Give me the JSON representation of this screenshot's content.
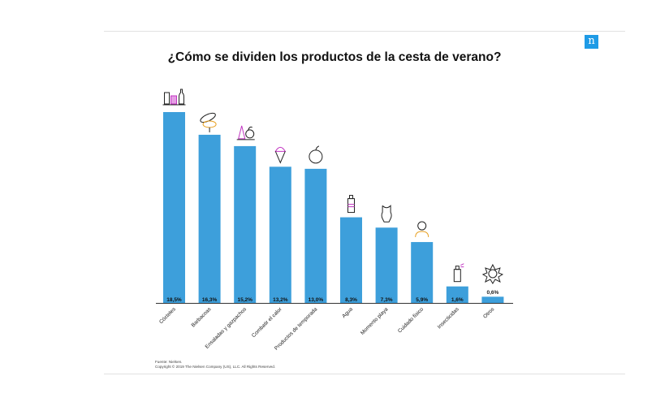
{
  "title": "¿Cómo se dividen los productos de la cesta de verano?",
  "logo_letter": "n",
  "source_line": "Fuente: Nielsen.",
  "copyright_line": "Copyright © 2019 The Nielsen Company (US), LLC. All Rights Reserved.",
  "colors": {
    "bar": "#3d9fdb",
    "axis": "#333333",
    "logo": "#1f9be6"
  },
  "chart_data": {
    "type": "bar",
    "title": "¿Cómo se dividen los productos de la cesta de verano?",
    "xlabel": "",
    "ylabel": "",
    "categories": [
      "Cócteles",
      "Barbacoas",
      "Ensaladas y gazpachos",
      "Combatir el calor",
      "Productos de temporada",
      "Agua",
      "Momento playa",
      "Cuidado físico",
      "Insecticidas",
      "Otros"
    ],
    "values": [
      18.5,
      16.3,
      15.2,
      13.2,
      13.0,
      8.3,
      7.3,
      5.9,
      1.6,
      0.6
    ],
    "value_labels": [
      "18,5%",
      "16,3%",
      "15,2%",
      "13,2%",
      "13,0%",
      "8,3%",
      "7,3%",
      "5,9%",
      "1,6%",
      "0,6%"
    ],
    "icons": [
      "cocktail-icon",
      "barbecue-icon",
      "salad-icon",
      "ice-cream-icon",
      "apple-icon",
      "water-bottle-icon",
      "swimsuit-icon",
      "person-icon",
      "insecticide-spray-icon",
      "sun-icon"
    ],
    "ylim": [
      0,
      18.5
    ],
    "grid": false,
    "legend": "none"
  }
}
